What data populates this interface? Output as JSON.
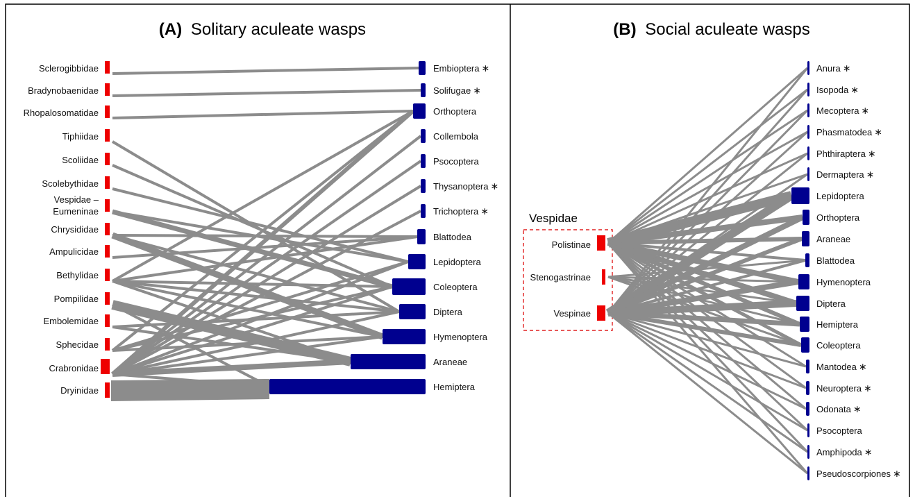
{
  "colors": {
    "predator": "#ee0000",
    "prey": "#00008f",
    "link": "#8c8c8c"
  },
  "panel_a": {
    "title_letter": "(A)",
    "title_text": "Solitary aculeate wasps",
    "wasps": [
      "Sclerogibbidae",
      "Bradynobaenidae",
      "Rhopalosomatidae",
      "Tiphiidae",
      "Scoliidae",
      "Scolebythidae",
      "Vespidae –",
      "Eumeninae",
      "Chrysididae",
      "Ampulicidae",
      "Bethylidae",
      "Pompilidae",
      "Embolemidae",
      "Sphecidae",
      "Crabronidae",
      "Dryinidae"
    ],
    "prey": [
      {
        "name": "Embioptera",
        "star": true
      },
      {
        "name": "Solifugae",
        "star": true
      },
      {
        "name": "Orthoptera",
        "star": false
      },
      {
        "name": "Collembola",
        "star": false
      },
      {
        "name": "Psocoptera",
        "star": false
      },
      {
        "name": "Thysanoptera",
        "star": true
      },
      {
        "name": "Trichoptera",
        "star": true
      },
      {
        "name": "Blattodea",
        "star": false
      },
      {
        "name": "Lepidoptera",
        "star": false
      },
      {
        "name": "Coleoptera",
        "star": false
      },
      {
        "name": "Diptera",
        "star": false
      },
      {
        "name": "Hymenoptera",
        "star": false
      },
      {
        "name": "Araneae",
        "star": false
      },
      {
        "name": "Hemiptera",
        "star": false
      }
    ]
  },
  "panel_b": {
    "title_letter": "(B)",
    "title_text": "Social aculeate wasps",
    "group_label": "Vespidae",
    "wasps": [
      "Polistinae",
      "Stenogastrinae",
      "Vespinae"
    ],
    "prey": [
      {
        "name": "Anura",
        "star": true
      },
      {
        "name": "Isopoda",
        "star": true
      },
      {
        "name": "Mecoptera",
        "star": true
      },
      {
        "name": "Phasmatodea",
        "star": true
      },
      {
        "name": "Phthiraptera",
        "star": true
      },
      {
        "name": "Dermaptera",
        "star": true
      },
      {
        "name": "Lepidoptera",
        "star": false
      },
      {
        "name": "Orthoptera",
        "star": false
      },
      {
        "name": "Araneae",
        "star": false
      },
      {
        "name": "Blattodea",
        "star": false
      },
      {
        "name": "Hymenoptera",
        "star": false
      },
      {
        "name": "Diptera",
        "star": false
      },
      {
        "name": "Hemiptera",
        "star": false
      },
      {
        "name": "Coleoptera",
        "star": false
      },
      {
        "name": "Mantodea",
        "star": true
      },
      {
        "name": "Neuroptera",
        "star": true
      },
      {
        "name": "Odonata",
        "star": true
      },
      {
        "name": "Psocoptera",
        "star": false
      },
      {
        "name": "Amphipoda",
        "star": true
      },
      {
        "name": "Pseudoscorpiones",
        "star": true
      }
    ]
  },
  "star_symbol": "∗"
}
